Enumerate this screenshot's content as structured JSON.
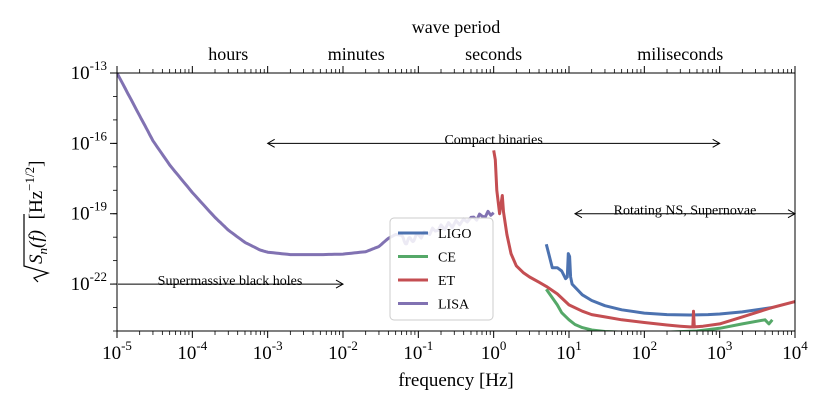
{
  "chart_data": {
    "type": "line",
    "xscale": "log",
    "yscale": "log",
    "xlim": [
      1e-05,
      10000
    ],
    "ylim": [
      1e-24,
      1e-13
    ],
    "xlabel": "frequency",
    "xlabel_unit": "[Hz]",
    "ylabel_base": "S",
    "ylabel_sub": "n",
    "ylabel_arg": "(f)",
    "ylabel_unit_open": "[Hz",
    "ylabel_unit_exp": "−1/2",
    "ylabel_unit_close": "]",
    "top_axis_title": "wave period",
    "top_axis_labels": [
      {
        "text": "hours",
        "x": 0.0003
      },
      {
        "text": "minutes",
        "x": 0.015
      },
      {
        "text": "seconds",
        "x": 1
      },
      {
        "text": "miliseconds",
        "x": 300
      }
    ],
    "x_ticks": [
      {
        "base": "10",
        "exp": "-5",
        "value": 1e-05
      },
      {
        "base": "10",
        "exp": "-4",
        "value": 0.0001
      },
      {
        "base": "10",
        "exp": "-3",
        "value": 0.001
      },
      {
        "base": "10",
        "exp": "-2",
        "value": 0.01
      },
      {
        "base": "10",
        "exp": "-1",
        "value": 0.1
      },
      {
        "base": "10",
        "exp": "0",
        "value": 1
      },
      {
        "base": "10",
        "exp": "1",
        "value": 10
      },
      {
        "base": "10",
        "exp": "2",
        "value": 100
      },
      {
        "base": "10",
        "exp": "3",
        "value": 1000
      },
      {
        "base": "10",
        "exp": "4",
        "value": 10000
      }
    ],
    "y_ticks": [
      {
        "base": "10",
        "exp": "-22",
        "value": 1e-22
      },
      {
        "base": "10",
        "exp": "-19",
        "value": 1e-19
      },
      {
        "base": "10",
        "exp": "-16",
        "value": 1e-16
      },
      {
        "base": "10",
        "exp": "-13",
        "value": 1e-13
      }
    ],
    "annotations": [
      {
        "text": "Compact binaries",
        "x_from": 0.001,
        "x_to": 1000,
        "y": 1e-16,
        "label_y": 3e-16
      },
      {
        "text": "Rotating NS, Supernovae",
        "x_from": 12,
        "x_to": 10000,
        "y": 1e-19,
        "label_y": 3e-19
      },
      {
        "text": "Supermassive black holes",
        "x_from": 1e-05,
        "x_to": 0.01,
        "y": 1e-22,
        "label_y": 3e-22
      }
    ],
    "legend_position": "center",
    "series": [
      {
        "name": "LIGO",
        "color": "#4c72b0",
        "points": [
          [
            5,
            5e-21
          ],
          [
            6,
            5e-22
          ],
          [
            7,
            5e-22
          ],
          [
            8,
            3.6e-22
          ],
          [
            9,
            1.7e-22
          ],
          [
            9.5,
            2e-22
          ],
          [
            9.8,
            2e-21
          ],
          [
            10.2,
            1.5e-21
          ],
          [
            10.5,
            2e-22
          ],
          [
            11,
            1e-22
          ],
          [
            15,
            3.5e-23
          ],
          [
            20,
            2e-23
          ],
          [
            30,
            1.2e-23
          ],
          [
            50,
            8e-24
          ],
          [
            100,
            5.8e-24
          ],
          [
            200,
            5e-24
          ],
          [
            400,
            4.8e-24
          ],
          [
            700,
            5e-24
          ],
          [
            1000,
            5.3e-24
          ],
          [
            2000,
            6.5e-24
          ],
          [
            5000,
            1e-23
          ]
        ]
      },
      {
        "name": "CE",
        "color": "#55a868",
        "points": [
          [
            5,
            6e-23
          ],
          [
            6,
            2.6e-23
          ],
          [
            7,
            1.3e-23
          ],
          [
            8,
            6e-24
          ],
          [
            10,
            3e-24
          ],
          [
            12,
            1.9e-24
          ],
          [
            15,
            1.4e-24
          ],
          [
            20,
            1.1e-24
          ],
          [
            30,
            9.5e-25
          ],
          [
            50,
            9e-25
          ],
          [
            100,
            8.8e-25
          ],
          [
            200,
            9e-25
          ],
          [
            500,
            1e-24
          ],
          [
            1000,
            1.3e-24
          ],
          [
            2000,
            2e-24
          ],
          [
            4000,
            3e-24
          ],
          [
            4500,
            2e-24
          ],
          [
            5000,
            3e-24
          ]
        ]
      },
      {
        "name": "ET",
        "color": "#c44e52",
        "points": [
          [
            1,
            5e-17
          ],
          [
            1.05,
            2e-17
          ],
          [
            1.1,
            1e-18
          ],
          [
            1.2,
            1e-19
          ],
          [
            1.3,
            6e-19
          ],
          [
            1.35,
            1.2e-19
          ],
          [
            1.5,
            1.3e-20
          ],
          [
            1.7,
            2e-21
          ],
          [
            2,
            6e-22
          ],
          [
            2.5,
            3e-22
          ],
          [
            3,
            2e-22
          ],
          [
            4,
            1.2e-22
          ],
          [
            5,
            8e-23
          ],
          [
            7,
            3.8e-23
          ],
          [
            10,
            1.3e-23
          ],
          [
            15,
            7e-24
          ],
          [
            20,
            5e-24
          ],
          [
            30,
            4e-24
          ],
          [
            50,
            3e-24
          ],
          [
            100,
            2.3e-24
          ],
          [
            200,
            1.8e-24
          ],
          [
            300,
            1.6e-24
          ],
          [
            400,
            1.5e-24
          ],
          [
            440,
            1.5e-24
          ],
          [
            450,
            7e-24
          ],
          [
            460,
            1.5e-24
          ],
          [
            600,
            1.6e-24
          ],
          [
            1000,
            2e-24
          ],
          [
            2000,
            4e-24
          ],
          [
            5000,
            1e-23
          ],
          [
            10000,
            1.8e-23
          ]
        ]
      },
      {
        "name": "LISA",
        "color": "#8172b2",
        "points": [
          [
            1e-05,
            1e-13
          ],
          [
            2e-05,
            1.5e-15
          ],
          [
            3e-05,
            1.3e-16
          ],
          [
            5e-05,
            1.2e-17
          ],
          [
            0.0001,
            8e-19
          ],
          [
            0.0002,
            7e-20
          ],
          [
            0.0003,
            2e-20
          ],
          [
            0.0005,
            6e-21
          ],
          [
            0.0008,
            2.8e-21
          ],
          [
            0.001,
            2.3e-21
          ],
          [
            0.002,
            1.8e-21
          ],
          [
            0.005,
            1.8e-21
          ],
          [
            0.01,
            1.9e-21
          ],
          [
            0.02,
            2.4e-21
          ],
          [
            0.03,
            4e-21
          ],
          [
            0.04,
            9e-21
          ],
          [
            0.05,
            1.3e-20
          ],
          [
            0.06,
            1.2e-20
          ],
          [
            0.07,
            6e-21
          ],
          [
            0.08,
            8e-21
          ],
          [
            0.1,
            1.1e-20
          ],
          [
            0.2,
            2.5e-20
          ],
          [
            0.5,
            6e-20
          ],
          [
            1,
            1.1e-19
          ]
        ]
      }
    ]
  }
}
